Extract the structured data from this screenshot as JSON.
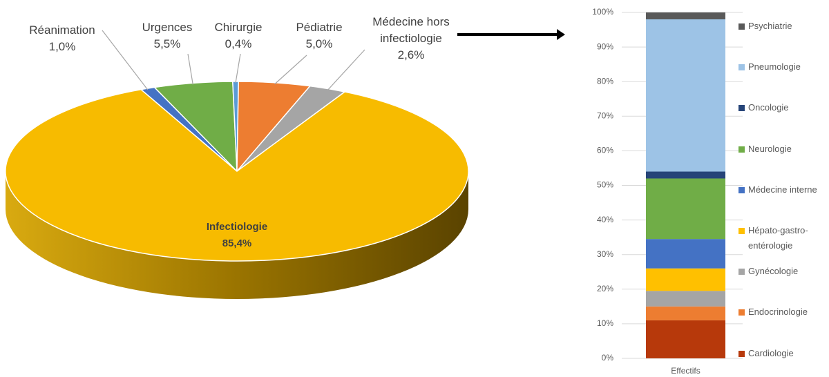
{
  "chart_data": [
    {
      "type": "pie",
      "categories": [
        "Réanimation",
        "Urgences",
        "Chirurgie",
        "Pédiatrie",
        "Médecine hors infectiologie",
        "Infectiologie"
      ],
      "values": [
        1.0,
        5.5,
        0.4,
        5.0,
        2.6,
        85.4
      ],
      "value_labels": [
        "1,0%",
        "5,5%",
        "0,4%",
        "5,0%",
        "2,6%",
        "85,4%"
      ],
      "colors": [
        "#4472c4",
        "#70ad47",
        "#5b9bd5",
        "#ed7d31",
        "#a5a5a5",
        "#f7bb00"
      ]
    },
    {
      "type": "stacked_bar",
      "categories": [
        "Effectifs"
      ],
      "ylim": [
        0,
        100
      ],
      "yticks": [
        {
          "value": 0,
          "label": "0%"
        },
        {
          "value": 10,
          "label": "10%"
        },
        {
          "value": 20,
          "label": "20%"
        },
        {
          "value": 30,
          "label": "30%"
        },
        {
          "value": 40,
          "label": "40%"
        },
        {
          "value": 50,
          "label": "50%"
        },
        {
          "value": 60,
          "label": "60%"
        },
        {
          "value": 70,
          "label": "70%"
        },
        {
          "value": 80,
          "label": "80%"
        },
        {
          "value": 90,
          "label": "90%"
        },
        {
          "value": 100,
          "label": "100%"
        }
      ],
      "grid": true,
      "series": [
        {
          "name": "Cardiologie",
          "color": "#b7390b",
          "values": [
            11
          ]
        },
        {
          "name": "Endocrinologie",
          "color": "#ed7d31",
          "values": [
            4
          ]
        },
        {
          "name": "Gynécologie",
          "color": "#a5a5a5",
          "values": [
            4.5
          ]
        },
        {
          "name": "Hépato-gastro-entérologie",
          "color": "#ffc000",
          "values": [
            6.5
          ]
        },
        {
          "name": "Médecine interne",
          "color": "#4472c4",
          "values": [
            8.5
          ]
        },
        {
          "name": "Neurologie",
          "color": "#70ad47",
          "values": [
            17.5
          ]
        },
        {
          "name": "Oncologie",
          "color": "#264478",
          "values": [
            2
          ]
        },
        {
          "name": "Pneumologie",
          "color": "#9dc3e6",
          "values": [
            44
          ]
        },
        {
          "name": "Psychiatrie",
          "color": "#595959",
          "values": [
            2
          ]
        }
      ]
    }
  ]
}
